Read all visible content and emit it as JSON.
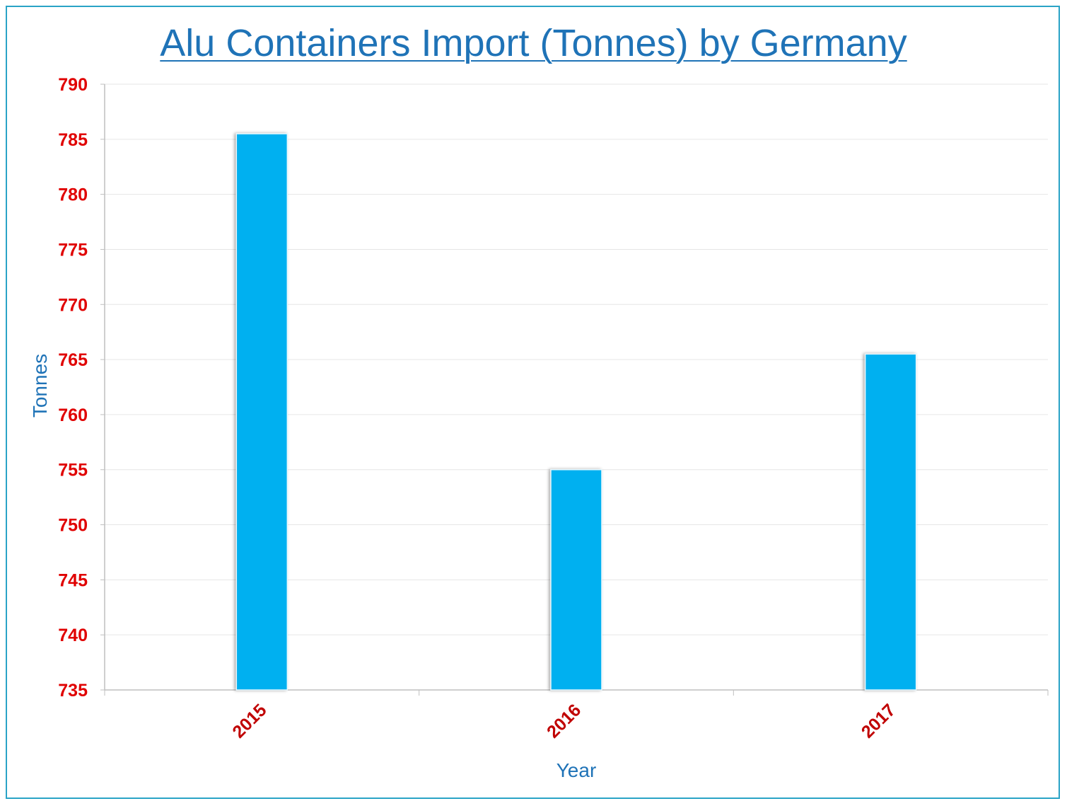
{
  "chart_data": {
    "type": "bar",
    "title": "Alu Containers Import (Tonnes) by Germany",
    "xlabel": "Year",
    "ylabel": "Tonnes",
    "categories": [
      "2015",
      "2016",
      "2017"
    ],
    "values": [
      785.5,
      755,
      765.5
    ],
    "ylim": [
      735,
      790
    ],
    "yticks": [
      735,
      740,
      745,
      750,
      755,
      760,
      765,
      770,
      775,
      780,
      785,
      790
    ],
    "grid": true,
    "legend": "none",
    "colors": {
      "bar": "#00b0f0",
      "title": "#1f73b7",
      "axis_label": "#1f73b7",
      "tick_y": "#e00000",
      "tick_x": "#c00000",
      "grid": "#e6e6e6",
      "frame": "#2aa3c6"
    }
  }
}
